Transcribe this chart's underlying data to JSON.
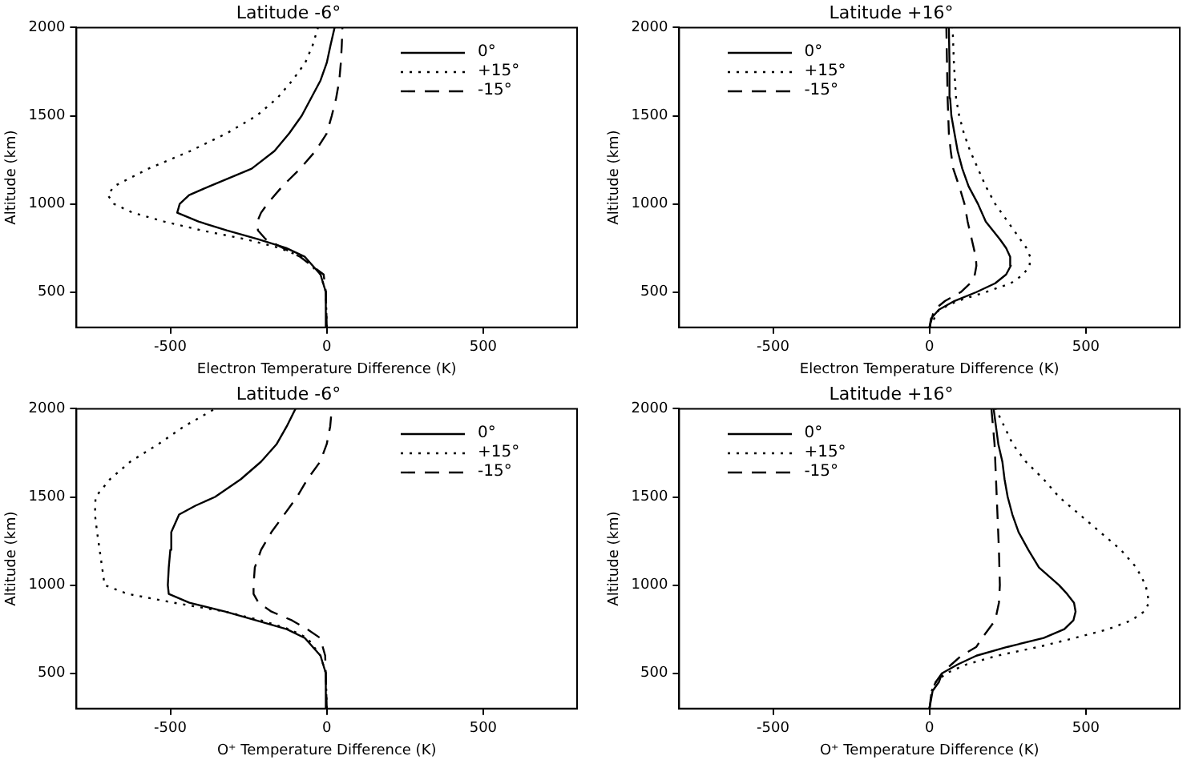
{
  "chart_data": [
    {
      "type": "line",
      "title": "Latitude -6°",
      "xlabel": "Electron Temperature Difference (K)",
      "ylabel": "Altitude (km)",
      "xlim": [
        -800,
        800
      ],
      "ylim": [
        300,
        2000
      ],
      "xticks": [
        -500,
        0,
        500
      ],
      "yticks": [
        500,
        1000,
        1500,
        2000
      ],
      "grid": false,
      "legend": "top right",
      "marker": "none",
      "series": [
        {
          "name": "0°",
          "color": "#000000",
          "line_style": "solid",
          "x": [
            0,
            -3,
            -20,
            -70,
            -130,
            -220,
            -320,
            -410,
            -478,
            -470,
            -440,
            -375,
            -240,
            -167,
            -120,
            -80,
            -50,
            -20,
            0,
            12,
            25
          ],
          "values": [
            300,
            500,
            600,
            700,
            750,
            800,
            850,
            900,
            950,
            1000,
            1050,
            1100,
            1200,
            1300,
            1400,
            1500,
            1600,
            1700,
            1800,
            1900,
            2000
          ]
        },
        {
          "name": "+15°",
          "color": "#000000",
          "line_style": "dotted",
          "x": [
            0,
            -3,
            -20,
            -80,
            -150,
            -260,
            -400,
            -520,
            -620,
            -680,
            -700,
            -680,
            -570,
            -436,
            -320,
            -224,
            -158,
            -110,
            -69,
            -45,
            -28
          ],
          "values": [
            300,
            500,
            600,
            700,
            750,
            800,
            850,
            900,
            950,
            1000,
            1050,
            1100,
            1200,
            1300,
            1400,
            1500,
            1600,
            1700,
            1800,
            1900,
            2000
          ]
        },
        {
          "name": "-15°",
          "color": "#000000",
          "line_style": "dashed",
          "x": [
            0,
            -3,
            -10,
            -85,
            -140,
            -195,
            -220,
            -222,
            -210,
            -190,
            -142,
            -85,
            -36,
            0,
            16,
            30,
            40,
            45,
            48,
            50
          ],
          "values": [
            300,
            500,
            600,
            700,
            750,
            800,
            850,
            900,
            950,
            1000,
            1100,
            1200,
            1300,
            1400,
            1500,
            1600,
            1700,
            1800,
            1900,
            2000
          ]
        }
      ]
    },
    {
      "type": "line",
      "title": "Latitude +16°",
      "xlabel": "Electron Temperature Difference (K)",
      "ylabel": "Altitude (km)",
      "xlim": [
        -800,
        800
      ],
      "ylim": [
        300,
        2000
      ],
      "xticks": [
        -500,
        0,
        500
      ],
      "yticks": [
        500,
        1000,
        1500,
        2000
      ],
      "grid": false,
      "legend": "top left",
      "marker": "none",
      "series": [
        {
          "name": "0°",
          "color": "#000000",
          "line_style": "solid",
          "x": [
            0,
            5,
            30,
            80,
            150,
            210,
            245,
            260,
            258,
            245,
            225,
            180,
            155,
            125,
            105,
            90,
            80,
            70,
            66,
            64,
            62
          ],
          "values": [
            300,
            350,
            400,
            450,
            500,
            550,
            600,
            650,
            700,
            750,
            800,
            900,
            1000,
            1100,
            1200,
            1300,
            1400,
            1500,
            1600,
            1800,
            2000
          ]
        },
        {
          "name": "+15°",
          "color": "#000000",
          "line_style": "dotted",
          "x": [
            0,
            30,
            90,
            180,
            260,
            300,
            320,
            322,
            310,
            290,
            250,
            210,
            180,
            155,
            130,
            110,
            95,
            85,
            78,
            74
          ],
          "values": [
            300,
            400,
            450,
            500,
            550,
            600,
            650,
            700,
            750,
            800,
            900,
            1000,
            1100,
            1200,
            1300,
            1400,
            1500,
            1600,
            1800,
            2000
          ]
        },
        {
          "name": "-15°",
          "color": "#000000",
          "line_style": "dashed",
          "x": [
            0,
            15,
            50,
            100,
            130,
            145,
            150,
            148,
            135,
            122,
            112,
            95,
            76,
            68,
            62,
            58,
            54
          ],
          "values": [
            300,
            400,
            450,
            500,
            550,
            600,
            650,
            700,
            800,
            900,
            1000,
            1100,
            1200,
            1300,
            1400,
            1600,
            2000
          ]
        }
      ]
    },
    {
      "type": "line",
      "title": "Latitude -6°",
      "xlabel": "O⁺ Temperature Difference (K)",
      "ylabel": "Altitude (km)",
      "xlim": [
        -800,
        800
      ],
      "ylim": [
        300,
        2000
      ],
      "xticks": [
        -500,
        0,
        500
      ],
      "yticks": [
        500,
        1000,
        1500,
        2000
      ],
      "grid": false,
      "legend": "top right",
      "marker": "none",
      "series": [
        {
          "name": "0°",
          "color": "#000000",
          "line_style": "solid",
          "x": [
            0,
            -3,
            -20,
            -70,
            -128,
            -226,
            -325,
            -439,
            -505,
            -508,
            -505,
            -500,
            -497,
            -472,
            -420,
            -357,
            -275,
            -210,
            -160,
            -128,
            -100
          ],
          "values": [
            300,
            500,
            600,
            700,
            750,
            800,
            850,
            900,
            950,
            1000,
            1100,
            1200,
            1300,
            1400,
            1450,
            1500,
            1600,
            1700,
            1800,
            1900,
            2000
          ]
        },
        {
          "name": "+15°",
          "color": "#000000",
          "line_style": "dotted",
          "x": [
            0,
            -3,
            -20,
            -62,
            -120,
            -210,
            -325,
            -488,
            -636,
            -710,
            -718,
            -726,
            -734,
            -741,
            -739,
            -693,
            -628,
            -538,
            -456,
            -357
          ],
          "values": [
            300,
            500,
            600,
            700,
            750,
            800,
            850,
            900,
            950,
            1000,
            1100,
            1200,
            1300,
            1400,
            1500,
            1600,
            1700,
            1800,
            1900,
            2000
          ]
        },
        {
          "name": "-15°",
          "color": "#000000",
          "line_style": "dashed",
          "x": [
            0,
            -5,
            -21,
            -62,
            -111,
            -177,
            -218,
            -234,
            -234,
            -230,
            -210,
            -177,
            -136,
            -95,
            -62,
            -21,
            0,
            11,
            16
          ],
          "values": [
            300,
            600,
            700,
            750,
            800,
            850,
            900,
            950,
            1000,
            1100,
            1200,
            1300,
            1400,
            1500,
            1600,
            1700,
            1800,
            1900,
            2000
          ]
        }
      ]
    },
    {
      "type": "line",
      "title": "Latitude +16°",
      "xlabel": "O⁺ Temperature Difference (K)",
      "ylabel": "Altitude (km)",
      "xlim": [
        -800,
        800
      ],
      "ylim": [
        300,
        2000
      ],
      "xticks": [
        -500,
        0,
        500
      ],
      "yticks": [
        500,
        1000,
        1500,
        2000
      ],
      "grid": false,
      "legend": "top left",
      "marker": "none",
      "series": [
        {
          "name": "0°",
          "color": "#000000",
          "line_style": "solid",
          "x": [
            0,
            10,
            30,
            40,
            90,
            150,
            250,
            365,
            431,
            460,
            467,
            462,
            440,
            414,
            350,
            316,
            285,
            265,
            250,
            240,
            233,
            220,
            205
          ],
          "values": [
            300,
            400,
            450,
            500,
            550,
            600,
            650,
            700,
            750,
            800,
            850,
            900,
            950,
            1000,
            1100,
            1200,
            1300,
            1400,
            1500,
            1600,
            1700,
            1800,
            2000
          ]
        },
        {
          "name": "+15°",
          "color": "#000000",
          "line_style": "dotted",
          "x": [
            0,
            7,
            20,
            53,
            118,
            217,
            349,
            464,
            571,
            645,
            686,
            702,
            691,
            661,
            612,
            546,
            480,
            414,
            365,
            308,
            266,
            212
          ],
          "values": [
            300,
            400,
            450,
            500,
            550,
            600,
            650,
            700,
            750,
            800,
            850,
            900,
            1000,
            1100,
            1200,
            1300,
            1400,
            1500,
            1600,
            1700,
            1800,
            2000
          ]
        },
        {
          "name": "-15°",
          "color": "#000000",
          "line_style": "dashed",
          "x": [
            0,
            7,
            20,
            40,
            70,
            102,
            150,
            168,
            210,
            222,
            225,
            222,
            215,
            208,
            198
          ],
          "values": [
            300,
            400,
            450,
            500,
            550,
            600,
            650,
            700,
            800,
            900,
            1000,
            1200,
            1500,
            1800,
            2000
          ]
        }
      ]
    }
  ]
}
